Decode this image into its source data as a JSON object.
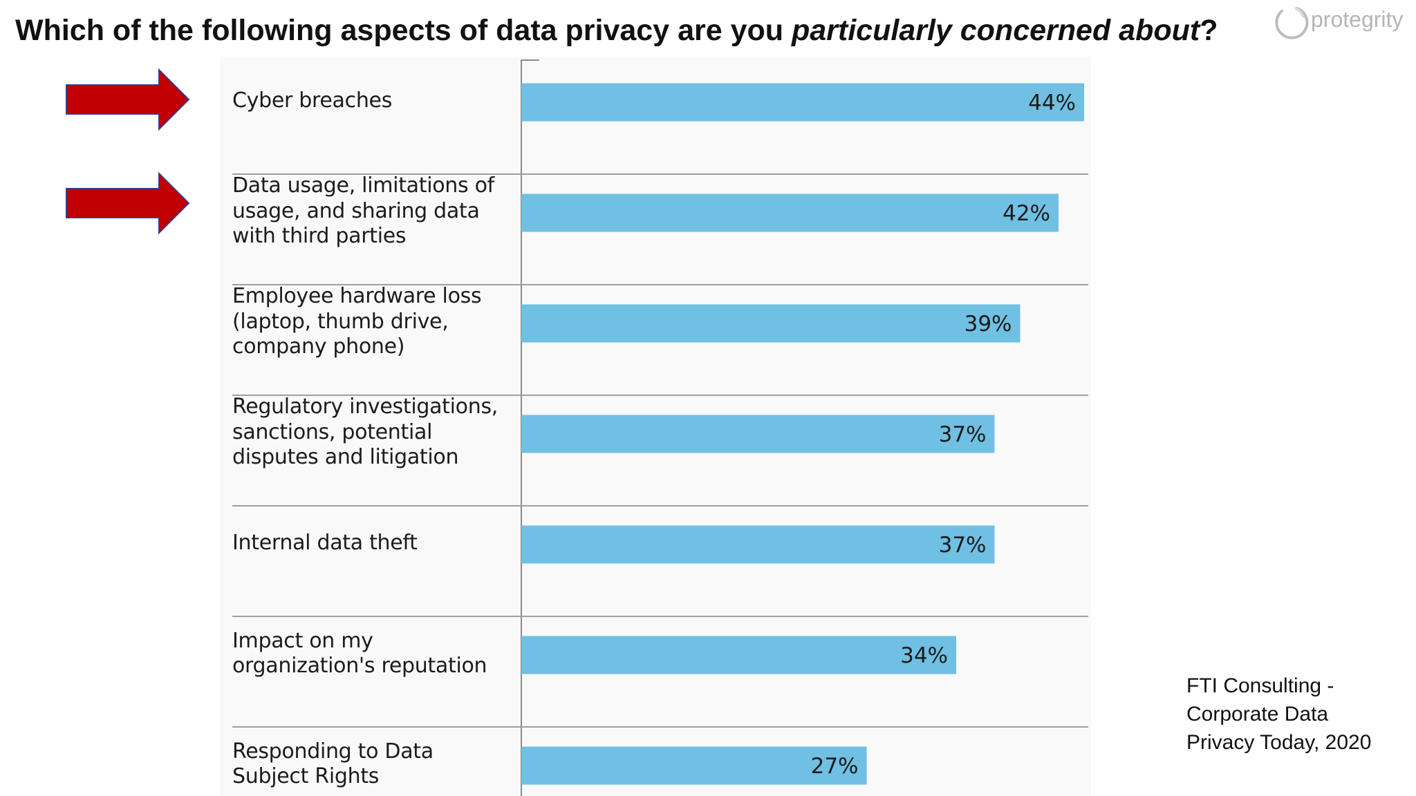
{
  "title": {
    "plain": "Which of the following aspects of data privacy are you ",
    "italic": "particularly concerned about",
    "end": "?"
  },
  "logo": {
    "text": "protegrity",
    "icon": "protegrity-logo-icon"
  },
  "source_lines": [
    "FTI Consulting -",
    "Corporate Data",
    "Privacy Today, 2020"
  ],
  "colors": {
    "bar": "#6fc0e3",
    "arrow": "#c00000",
    "arrow_outline": "#3a3a8c",
    "gridline": "#999999"
  },
  "chart_data": {
    "type": "bar",
    "orientation": "horizontal",
    "categories": [
      "Cyber breaches",
      "Data usage, limitations of usage, and sharing data with third parties",
      "Employee hardware loss (laptop, thumb drive, company phone)",
      "Regulatory investigations, sanctions, potential disputes and litigation",
      "Internal data theft",
      "Impact on my organization's reputation",
      "Responding to Data Subject Rights"
    ],
    "category_lines": [
      [
        "Cyber breaches"
      ],
      [
        "Data usage, limitations of",
        "usage, and sharing data",
        "with third parties"
      ],
      [
        "Employee hardware loss",
        "(laptop, thumb drive,",
        "company phone)"
      ],
      [
        "Regulatory investigations,",
        "sanctions, potential",
        "disputes and litigation"
      ],
      [
        "Internal data theft"
      ],
      [
        "Impact on my",
        "organization's reputation"
      ],
      [
        "Responding to Data",
        "Subject Rights"
      ]
    ],
    "values": [
      44,
      42,
      39,
      37,
      37,
      34,
      27
    ],
    "value_labels": [
      "44%",
      "42%",
      "39%",
      "37%",
      "37%",
      "34%",
      "27%"
    ],
    "highlighted": [
      true,
      true,
      false,
      false,
      false,
      false,
      false
    ],
    "unit": "%"
  }
}
